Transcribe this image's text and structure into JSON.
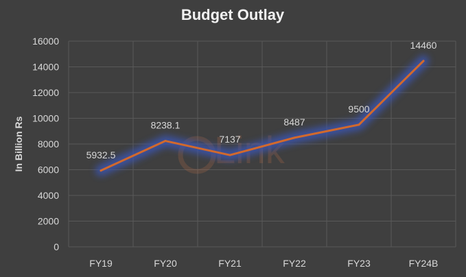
{
  "chart_data": {
    "type": "line",
    "title": "Budget Outlay",
    "xlabel": "",
    "ylabel": "In Billion Rs",
    "categories": [
      "FY19",
      "FY20",
      "FY21",
      "FY22",
      "FY23",
      "FY24B"
    ],
    "series": [
      {
        "values": [
          5932.5,
          8238.1,
          7137,
          8487,
          9500,
          14460
        ]
      }
    ],
    "data_labels": [
      "5932.5",
      "8238.1",
      "7137",
      "8487",
      "9500",
      "14460"
    ],
    "ylim": [
      0,
      16000
    ],
    "yticks": [
      0,
      2000,
      4000,
      6000,
      8000,
      10000,
      12000,
      14000,
      16000
    ],
    "grid": true,
    "legend": "none",
    "colors": {
      "background": "#3f3f3f",
      "line": "#d2692c",
      "glow": "#3b55b0",
      "grid": "#595959",
      "text": "#d9d9d9",
      "title": "#f2f2f2"
    }
  },
  "watermark": {
    "text": "Link"
  }
}
